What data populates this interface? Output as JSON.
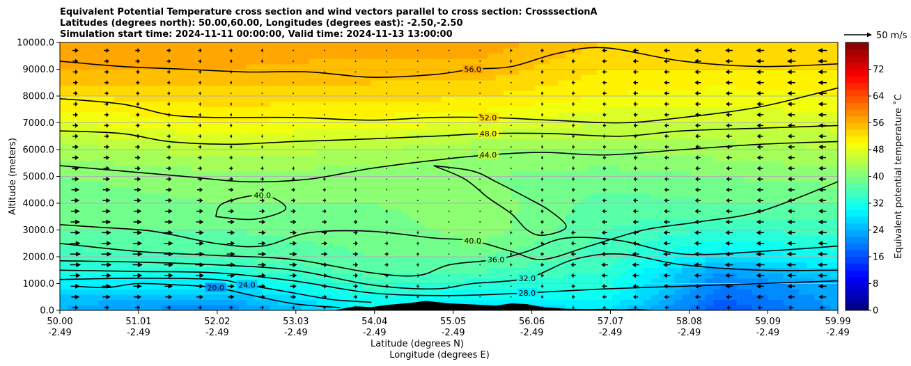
{
  "chart_data": {
    "type": "heatmap",
    "title_lines": [
      "Equivalent Potential Temperature cross section and wind vectors parallel to cross section: CrosssectionA",
      "Latitudes (degrees north): 50.00,60.00, Longitudes (degrees east): -2.50,-2.50",
      "Simulation start time: 2024-11-11 00:00:00, Valid time: 2024-11-13 13:00:00"
    ],
    "xlabel": "Latitude (degrees N)",
    "xlabel2": "Longitude (degrees E)",
    "ylabel": "Altitude (meters)",
    "xlim": [
      50.0,
      59.99
    ],
    "ylim": [
      0,
      10000
    ],
    "x_ticks": [
      {
        "lat": "50.00",
        "lon": "-2.49",
        "value": 50.0
      },
      {
        "lat": "51.01",
        "lon": "-2.49",
        "value": 51.01
      },
      {
        "lat": "52.02",
        "lon": "-2.49",
        "value": 52.02
      },
      {
        "lat": "53.03",
        "lon": "-2.49",
        "value": 53.03
      },
      {
        "lat": "54.04",
        "lon": "-2.49",
        "value": 54.04
      },
      {
        "lat": "55.05",
        "lon": "-2.49",
        "value": 55.05
      },
      {
        "lat": "56.06",
        "lon": "-2.49",
        "value": 56.06
      },
      {
        "lat": "57.07",
        "lon": "-2.49",
        "value": 57.07
      },
      {
        "lat": "58.08",
        "lon": "-2.49",
        "value": 58.08
      },
      {
        "lat": "59.09",
        "lon": "-2.49",
        "value": 59.09
      },
      {
        "lat": "59.99",
        "lon": "-2.49",
        "value": 59.99
      }
    ],
    "y_ticks": [
      {
        "label": "0.0",
        "value": 0
      },
      {
        "label": "1000.0",
        "value": 1000
      },
      {
        "label": "2000.0",
        "value": 2000
      },
      {
        "label": "3000.0",
        "value": 3000
      },
      {
        "label": "4000.0",
        "value": 4000
      },
      {
        "label": "5000.0",
        "value": 5000
      },
      {
        "label": "6000.0",
        "value": 6000
      },
      {
        "label": "7000.0",
        "value": 7000
      },
      {
        "label": "8000.0",
        "value": 8000
      },
      {
        "label": "9000.0",
        "value": 9000
      },
      {
        "label": "10000.0",
        "value": 10000
      }
    ],
    "grid": "horizontal",
    "colorbar": {
      "label": "Equivalent potential temperature ˚C",
      "min": 0,
      "max": 80,
      "step": 2,
      "ticks": [
        0,
        8,
        16,
        24,
        32,
        40,
        48,
        56,
        64,
        72
      ],
      "colormap": "jet"
    },
    "quiver_key": {
      "label": "50 m/s",
      "value": 50
    },
    "field_profile": {
      "altitudes": [
        0,
        500,
        1000,
        1500,
        2000,
        3000,
        4000,
        5000,
        6000,
        7000,
        8000,
        9000,
        10000
      ],
      "by_latitude": [
        {
          "lat": 50.0,
          "theta_e": [
            24,
            25,
            29,
            33,
            35,
            38,
            39,
            40,
            43,
            48,
            52,
            56,
            58
          ]
        },
        {
          "lat": 52.0,
          "theta_e": [
            20,
            24,
            29,
            33,
            36,
            38,
            40,
            41,
            45,
            50,
            53,
            56,
            58
          ]
        },
        {
          "lat": 54.0,
          "theta_e": [
            30,
            32,
            35,
            37,
            38,
            39,
            40,
            41,
            44,
            49,
            53,
            55,
            57
          ]
        },
        {
          "lat": 55.5,
          "theta_e": [
            26,
            30,
            33,
            36,
            38,
            41,
            41,
            40,
            42,
            48,
            52,
            55,
            57
          ]
        },
        {
          "lat": 57.0,
          "theta_e": [
            28,
            31,
            33,
            34,
            35,
            36,
            37,
            39,
            42,
            46,
            50,
            52,
            54
          ]
        },
        {
          "lat": 58.5,
          "theta_e": [
            16,
            18,
            20,
            22,
            28,
            34,
            38,
            40,
            43,
            46,
            49,
            52,
            54
          ]
        },
        {
          "lat": 59.99,
          "theta_e": [
            22,
            23,
            24,
            28,
            31,
            35,
            38,
            41,
            44,
            47,
            50,
            52,
            54
          ]
        }
      ]
    },
    "contours": [
      {
        "level": 20.0,
        "label": "20.0",
        "points": [
          [
            50.2,
            900
          ],
          [
            50.6,
            850
          ],
          [
            51.0,
            1000
          ],
          [
            51.5,
            950
          ],
          [
            52.0,
            850
          ],
          [
            52.4,
            600
          ],
          [
            53.0,
            250
          ],
          [
            53.6,
            100
          ]
        ]
      },
      {
        "level": 24.0,
        "label": "24.0",
        "points": [
          [
            50.0,
            1150
          ],
          [
            51.0,
            1200
          ],
          [
            52.0,
            1150
          ],
          [
            52.4,
            950
          ],
          [
            53.0,
            650
          ],
          [
            53.5,
            400
          ],
          [
            54.0,
            300
          ]
        ]
      },
      {
        "level": 28.0,
        "label": "28.0",
        "points": [
          [
            50.0,
            1500
          ],
          [
            51.0,
            1450
          ],
          [
            52.0,
            1400
          ],
          [
            53.0,
            1100
          ],
          [
            54.0,
            650
          ],
          [
            55.0,
            550
          ],
          [
            56.0,
            650
          ],
          [
            57.0,
            800
          ],
          [
            58.0,
            900
          ],
          [
            59.0,
            1000
          ],
          [
            59.99,
            1100
          ]
        ]
      },
      {
        "level": 32.0,
        "label": "32.0",
        "points": [
          [
            50.0,
            1850
          ],
          [
            51.0,
            1800
          ],
          [
            52.0,
            1700
          ],
          [
            53.0,
            1500
          ],
          [
            54.0,
            950
          ],
          [
            54.8,
            800
          ],
          [
            55.3,
            1000
          ],
          [
            56.0,
            1200
          ],
          [
            56.6,
            1900
          ],
          [
            57.2,
            2100
          ],
          [
            58.0,
            1700
          ],
          [
            59.0,
            1500
          ],
          [
            59.99,
            1500
          ]
        ]
      },
      {
        "level": 36.0,
        "label": "36.0",
        "points": [
          [
            50.0,
            2500
          ],
          [
            51.0,
            2200
          ],
          [
            52.0,
            2050
          ],
          [
            53.0,
            1900
          ],
          [
            54.0,
            1400
          ],
          [
            54.6,
            1300
          ],
          [
            55.0,
            1700
          ],
          [
            55.6,
            1900
          ],
          [
            56.0,
            2200
          ],
          [
            56.5,
            2700
          ],
          [
            57.2,
            2600
          ],
          [
            58.0,
            2100
          ],
          [
            59.0,
            2200
          ],
          [
            59.99,
            2400
          ]
        ]
      },
      {
        "level": 40.0,
        "label": "40.0",
        "points": [
          [
            50.0,
            3200
          ],
          [
            50.5,
            3100
          ],
          [
            51.2,
            2950
          ],
          [
            52.0,
            2500
          ],
          [
            52.6,
            2400
          ],
          [
            53.2,
            2900
          ],
          [
            54.0,
            2950
          ],
          [
            54.8,
            2700
          ],
          [
            55.3,
            2600
          ],
          [
            55.8,
            2200
          ],
          [
            56.2,
            1900
          ],
          [
            56.8,
            2400
          ],
          [
            57.5,
            3000
          ],
          [
            58.2,
            3300
          ],
          [
            59.0,
            3700
          ],
          [
            59.99,
            4800
          ]
        ]
      },
      {
        "level": 40.0,
        "label": "40.0",
        "points": [
          [
            52.0,
            3500
          ],
          [
            52.5,
            3400
          ],
          [
            52.9,
            3800
          ],
          [
            52.6,
            4300
          ],
          [
            52.1,
            4000
          ],
          [
            52.0,
            3500
          ]
        ]
      },
      {
        "level": 40.0,
        "label": "",
        "points": [
          [
            54.8,
            5400
          ],
          [
            55.2,
            4900
          ],
          [
            55.5,
            4200
          ],
          [
            55.8,
            3600
          ],
          [
            56.0,
            3000
          ],
          [
            56.2,
            2800
          ],
          [
            56.5,
            3100
          ],
          [
            56.3,
            3700
          ],
          [
            56.0,
            4200
          ],
          [
            55.6,
            4800
          ],
          [
            55.3,
            5200
          ],
          [
            54.8,
            5400
          ]
        ]
      },
      {
        "level": 44.0,
        "label": "44.0",
        "points": [
          [
            50.0,
            5400
          ],
          [
            50.8,
            5200
          ],
          [
            51.6,
            5000
          ],
          [
            52.4,
            4800
          ],
          [
            53.2,
            4900
          ],
          [
            54.0,
            5300
          ],
          [
            54.8,
            5600
          ],
          [
            55.5,
            5800
          ],
          [
            56.2,
            5900
          ],
          [
            57.0,
            5800
          ],
          [
            58.0,
            6000
          ],
          [
            59.0,
            6200
          ],
          [
            59.99,
            6300
          ]
        ]
      },
      {
        "level": 48.0,
        "label": "48.0",
        "points": [
          [
            50.0,
            6700
          ],
          [
            50.8,
            6600
          ],
          [
            51.4,
            6300
          ],
          [
            52.2,
            6200
          ],
          [
            53.0,
            6300
          ],
          [
            54.0,
            6400
          ],
          [
            54.8,
            6500
          ],
          [
            55.5,
            6600
          ],
          [
            56.3,
            6600
          ],
          [
            57.2,
            6500
          ],
          [
            58.0,
            6700
          ],
          [
            59.0,
            6800
          ],
          [
            59.99,
            6900
          ]
        ]
      },
      {
        "level": 52.0,
        "label": "52.0",
        "points": [
          [
            50.0,
            7900
          ],
          [
            50.8,
            7700
          ],
          [
            51.4,
            7300
          ],
          [
            52.0,
            7200
          ],
          [
            53.0,
            7200
          ],
          [
            54.0,
            7100
          ],
          [
            54.8,
            7200
          ],
          [
            55.5,
            7200
          ],
          [
            56.3,
            7100
          ],
          [
            57.2,
            7000
          ],
          [
            58.0,
            7200
          ],
          [
            59.0,
            7600
          ],
          [
            59.99,
            8300
          ]
        ]
      },
      {
        "level": 56.0,
        "label": "56.0",
        "points": [
          [
            50.0,
            9300
          ],
          [
            50.8,
            9100
          ],
          [
            51.6,
            9000
          ],
          [
            52.4,
            8900
          ],
          [
            53.2,
            8900
          ],
          [
            54.0,
            8700
          ],
          [
            54.8,
            8800
          ],
          [
            55.3,
            9000
          ],
          [
            55.8,
            9100
          ],
          [
            56.4,
            9600
          ],
          [
            57.0,
            9800
          ],
          [
            58.0,
            9300
          ],
          [
            59.0,
            9100
          ],
          [
            59.99,
            9200
          ]
        ]
      }
    ],
    "wind_profile": {
      "altitudes": [
        0,
        500,
        1000,
        1500,
        2000,
        3000,
        4000,
        5000,
        6000,
        7000,
        8000,
        9000,
        10000
      ],
      "by_latitude": [
        {
          "lat": 50.0,
          "u_ms": [
            10,
            15,
            18,
            20,
            20,
            18,
            16,
            14,
            12,
            10,
            8,
            10,
            12
          ]
        },
        {
          "lat": 53.0,
          "u_ms": [
            5,
            10,
            12,
            14,
            14,
            12,
            8,
            5,
            2,
            2,
            1,
            2,
            3
          ]
        },
        {
          "lat": 55.0,
          "u_ms": [
            0,
            2,
            3,
            2,
            2,
            1,
            0,
            0,
            0,
            0,
            0,
            0,
            -1
          ]
        },
        {
          "lat": 57.0,
          "u_ms": [
            -5,
            -8,
            -10,
            -12,
            -12,
            -10,
            -8,
            -6,
            -6,
            -6,
            -7,
            -8,
            -9
          ]
        },
        {
          "lat": 59.99,
          "u_ms": [
            -10,
            -14,
            -16,
            -18,
            -18,
            -16,
            -14,
            -14,
            -14,
            -15,
            -16,
            -17,
            -18
          ]
        }
      ]
    },
    "terrain": [
      [
        53.5,
        0
      ],
      [
        53.6,
        50
      ],
      [
        53.8,
        150
      ],
      [
        54.0,
        120
      ],
      [
        54.2,
        200
      ],
      [
        54.5,
        280
      ],
      [
        54.7,
        350
      ],
      [
        55.0,
        260
      ],
      [
        55.3,
        220
      ],
      [
        55.6,
        180
      ],
      [
        55.8,
        260
      ],
      [
        56.0,
        230
      ],
      [
        56.2,
        120
      ],
      [
        56.5,
        60
      ],
      [
        56.8,
        50
      ],
      [
        57.0,
        60
      ],
      [
        57.2,
        40
      ],
      [
        57.4,
        60
      ],
      [
        57.6,
        20
      ],
      [
        57.7,
        0
      ]
    ]
  }
}
